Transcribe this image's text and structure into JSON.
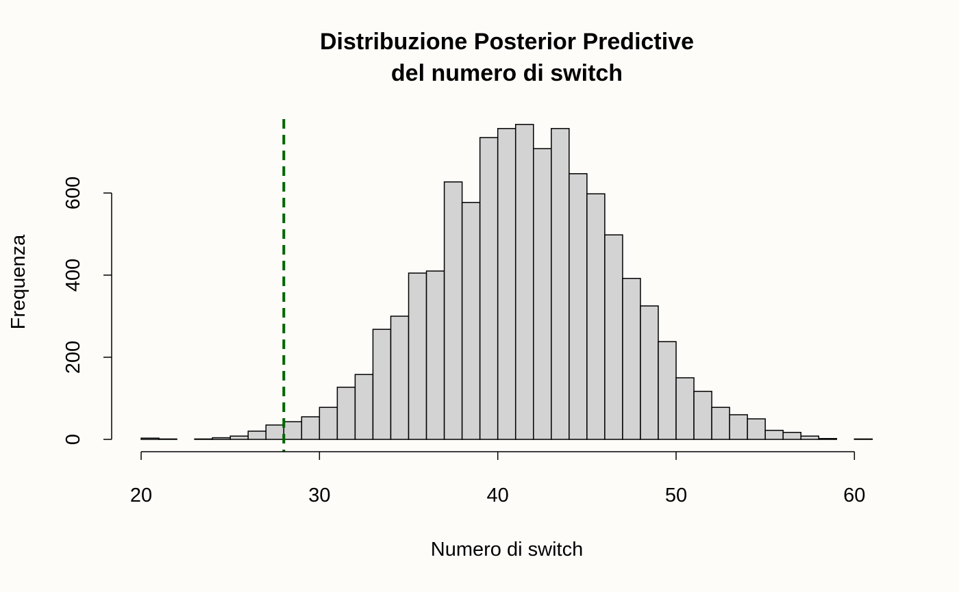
{
  "chart_data": {
    "type": "histogram",
    "title": [
      "Distribuzione Posterior Predictive",
      "del numero di switch"
    ],
    "xlabel": "Numero di switch",
    "ylabel": "Frequenza",
    "bins": [
      20,
      21,
      22,
      23,
      24,
      25,
      26,
      27,
      28,
      29,
      30,
      31,
      32,
      33,
      34,
      35,
      36,
      37,
      38,
      39,
      40,
      41,
      42,
      43,
      44,
      45,
      46,
      47,
      48,
      49,
      50,
      51,
      52,
      53,
      54,
      55,
      56,
      57,
      58,
      59,
      60,
      61
    ],
    "values": [
      3,
      1,
      0,
      1,
      4,
      8,
      20,
      35,
      43,
      55,
      78,
      127,
      158,
      268,
      300,
      405,
      410,
      627,
      577,
      735,
      757,
      767,
      708,
      757,
      647,
      598,
      498,
      392,
      325,
      238,
      150,
      117,
      78,
      60,
      50,
      22,
      17,
      8,
      2,
      0,
      1
    ],
    "color": "#d3d3d3",
    "reference_line": 28,
    "reference_color": "#006400",
    "xlim": [
      18.4,
      62.6
    ],
    "ylim": [
      -30,
      780
    ],
    "xticks": [
      20,
      30,
      40,
      50,
      60
    ],
    "yticks": [
      0,
      200,
      400,
      600
    ]
  }
}
